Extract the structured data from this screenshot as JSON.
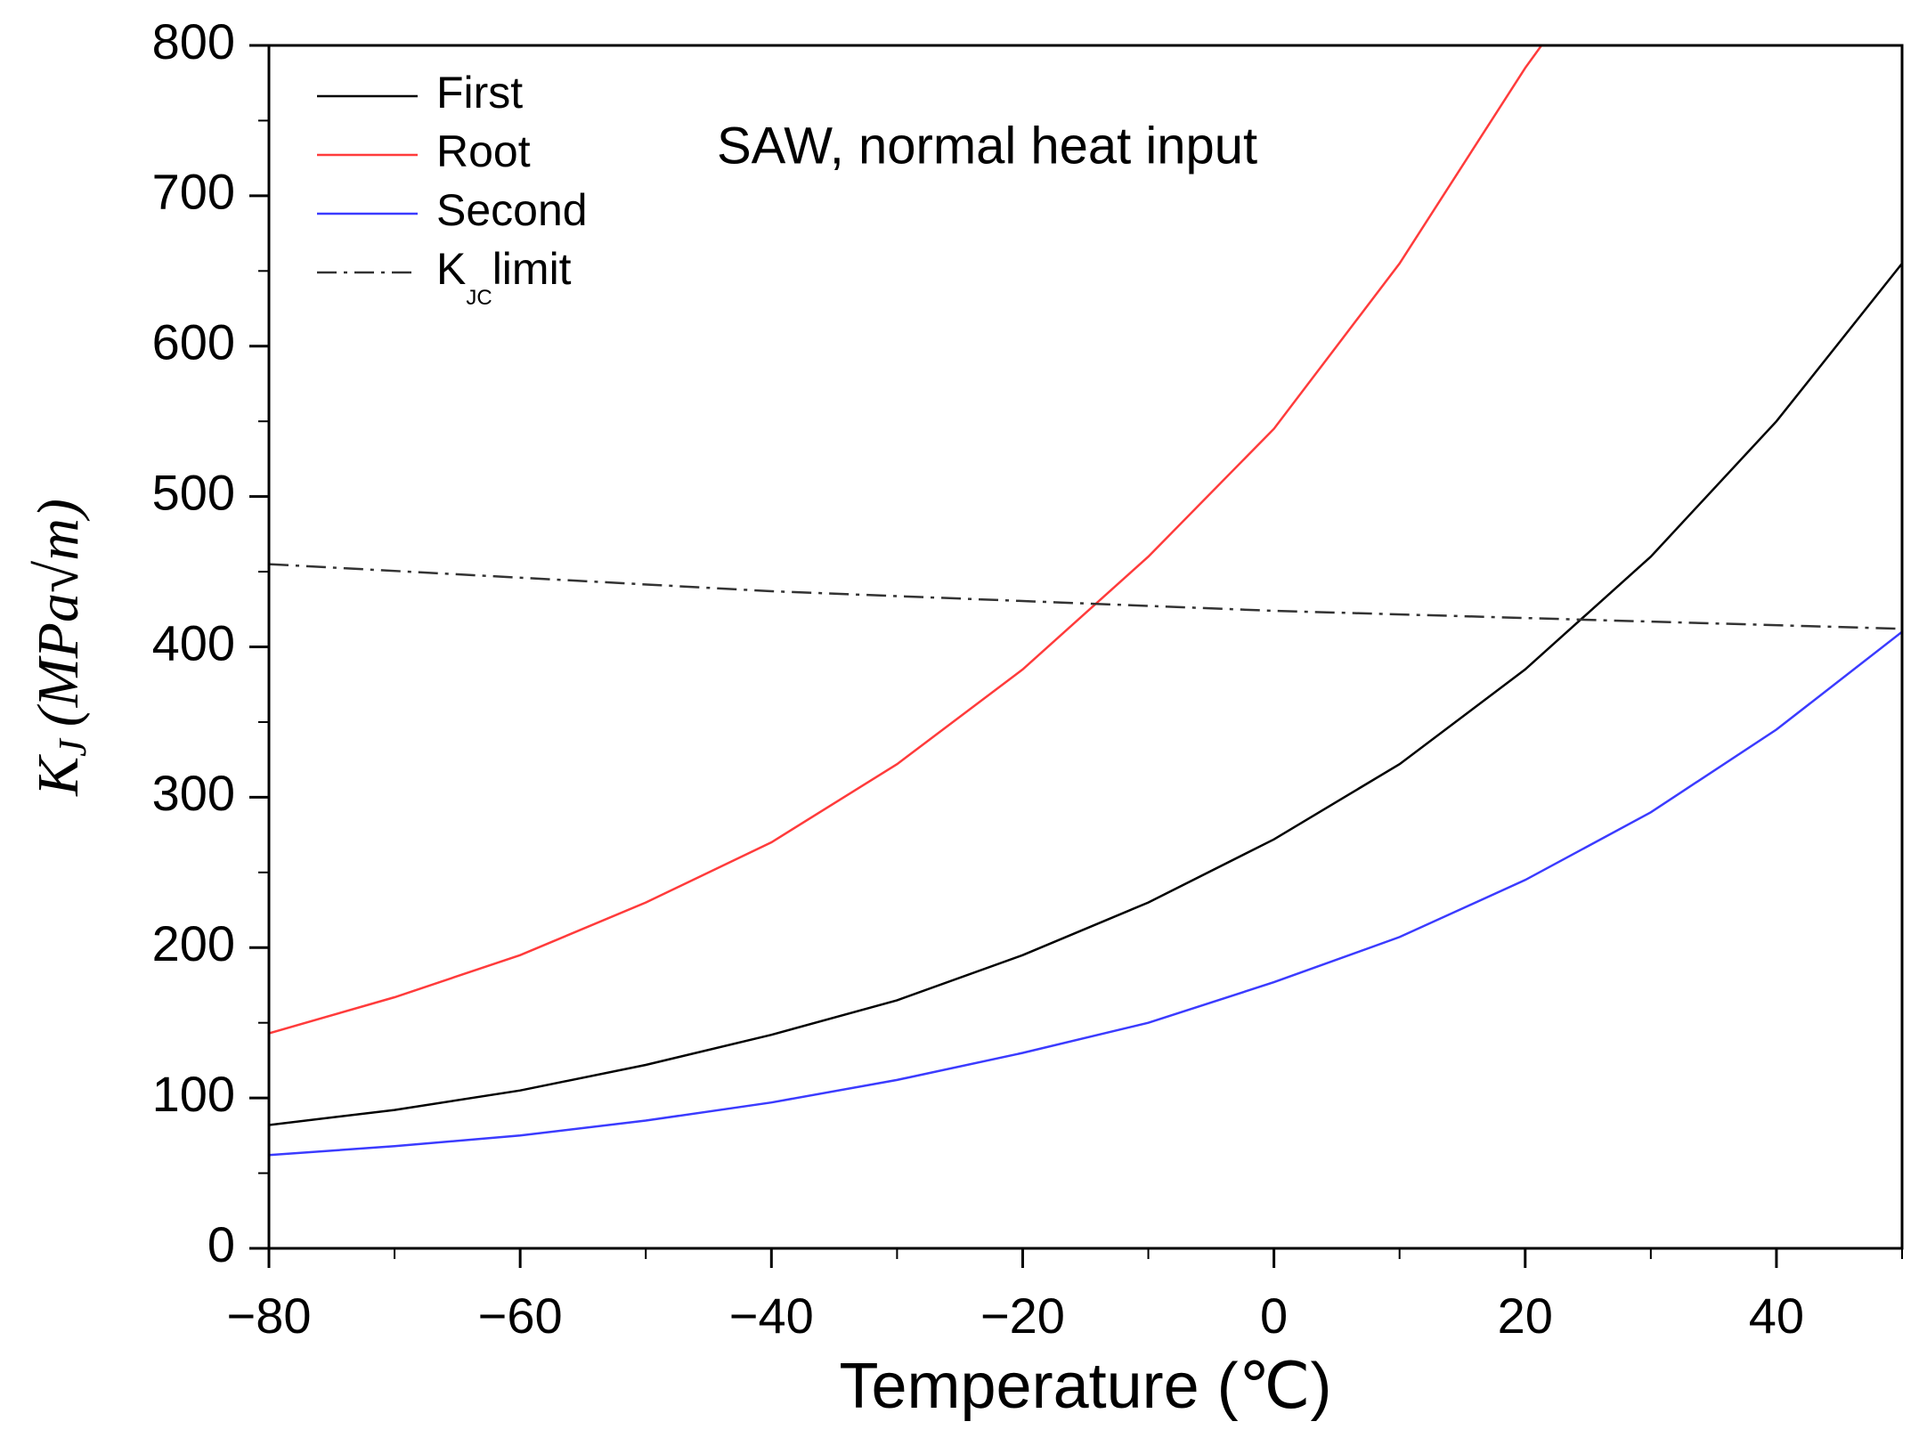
{
  "chart_data": {
    "type": "line",
    "annotation": "SAW, normal heat input",
    "xlabel": "Temperature (℃)",
    "ylabel": [
      "K",
      "J",
      "(MPa√m)"
    ],
    "x": [
      -80,
      -70,
      -60,
      -50,
      -40,
      -30,
      -20,
      -10,
      0,
      10,
      20,
      30,
      40,
      50
    ],
    "series": [
      {
        "name": [
          "First"
        ],
        "color": "#000000",
        "dash": "solid",
        "values": [
          82,
          92,
          105,
          122,
          142,
          165,
          195,
          230,
          272,
          322,
          385,
          460,
          550,
          655
        ]
      },
      {
        "name": [
          "Root"
        ],
        "color": "#ff3b3b",
        "dash": "solid",
        "x": [
          -80,
          -70,
          -60,
          -50,
          -40,
          -30,
          -20,
          -10,
          0,
          10,
          20,
          21.3
        ],
        "values": [
          143,
          167,
          195,
          230,
          270,
          322,
          385,
          460,
          545,
          655,
          785,
          800
        ]
      },
      {
        "name": [
          "Second"
        ],
        "color": "#3b3bff",
        "dash": "solid",
        "values": [
          62,
          68,
          75,
          85,
          97,
          112,
          130,
          150,
          177,
          207,
          245,
          290,
          345,
          410
        ]
      },
      {
        "name": [
          "K",
          "JC",
          "limit"
        ],
        "color": "#333333",
        "dash": "dashdot",
        "x": [
          -80,
          -40,
          0,
          50
        ],
        "values": [
          455,
          437,
          424,
          412
        ]
      }
    ],
    "xlim": [
      -80,
      50
    ],
    "ylim": [
      0,
      800
    ],
    "xticks": [
      {
        "value": -80,
        "label": "−80"
      },
      {
        "value": -60,
        "label": "−60"
      },
      {
        "value": -40,
        "label": "−40"
      },
      {
        "value": -20,
        "label": "−20"
      },
      0,
      20,
      40
    ],
    "yticks": [
      0,
      100,
      200,
      300,
      400,
      500,
      600,
      700,
      800
    ],
    "grid": false,
    "legend": "top-left"
  }
}
